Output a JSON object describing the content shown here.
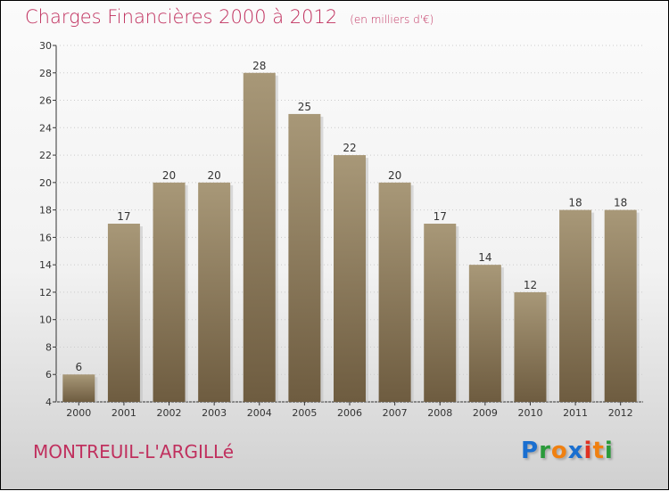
{
  "chart_data": {
    "type": "bar",
    "title": "Charges Financières 2000 à 2012",
    "unit": "(en milliers d'€)",
    "categories": [
      "2000",
      "2001",
      "2002",
      "2003",
      "2004",
      "2005",
      "2006",
      "2007",
      "2008",
      "2009",
      "2010",
      "2011",
      "2012"
    ],
    "values": [
      6,
      17,
      20,
      20,
      28,
      25,
      22,
      20,
      17,
      14,
      12,
      18,
      18
    ],
    "ylim": [
      4,
      30
    ],
    "yticks": [
      4,
      6,
      8,
      10,
      12,
      14,
      16,
      18,
      20,
      22,
      24,
      26,
      28,
      30
    ],
    "xlabel": "",
    "ylabel": ""
  },
  "location": "MONTREUIL-L'ARGILLé",
  "logo": {
    "text": "Proxiti",
    "colors": [
      "#1a6fd0",
      "#2a9a3a",
      "#f08010",
      "#1a6fd0",
      "#e03020",
      "#f08010",
      "#2a9a3a"
    ]
  },
  "colors": {
    "bar_top": "#a89878",
    "bar_bottom": "#6e5c40",
    "title": "#c0305e"
  }
}
